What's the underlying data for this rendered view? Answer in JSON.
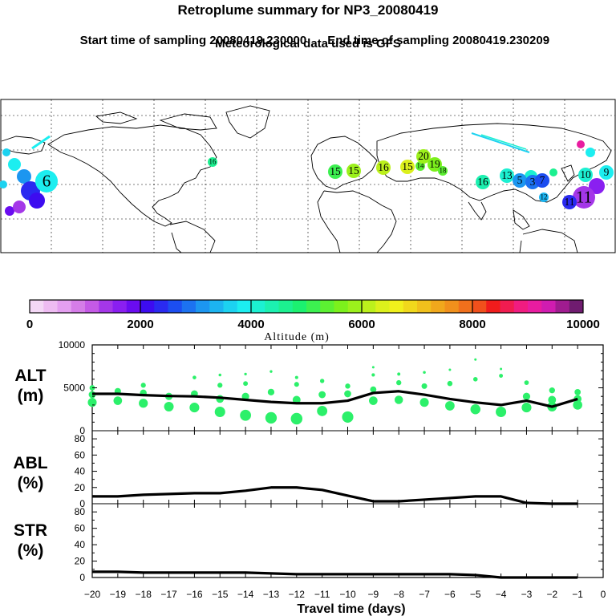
{
  "header": {
    "title": "Retroplume summary for NP3_20080419",
    "start_label": "Start time of sampling 20080419.230000",
    "end_label": "End time of sampling 20080419.230209",
    "met_label": "Meteorological data used is GFS"
  },
  "colorbar": {
    "ticks": [
      "0",
      "2000",
      "4000",
      "6000",
      "8000",
      "10000"
    ],
    "label": "Altitude (m)",
    "colors": [
      "#f4d8f6",
      "#eebcf2",
      "#e49ff0",
      "#d57de8",
      "#c45ae6",
      "#a437e8",
      "#8a1ff0",
      "#6a0cf0",
      "#3d0cf0",
      "#2a2af0",
      "#1c4ef0",
      "#1c72f0",
      "#1c96f0",
      "#1cb4f0",
      "#1cd2f0",
      "#1ceef0",
      "#1cf0d2",
      "#1cf0b0",
      "#1cf090",
      "#1cf070",
      "#3cf050",
      "#5cf032",
      "#7cf01c",
      "#9cf01c",
      "#bcf01c",
      "#dcf01c",
      "#f0f01c",
      "#f0d81c",
      "#f0c01c",
      "#f0a81c",
      "#f0901c",
      "#f0701c",
      "#f0501c",
      "#f01c1c",
      "#f01c50",
      "#f01c80",
      "#e81ca0",
      "#d01cb0",
      "#a01c90",
      "#701c70"
    ]
  },
  "map": {
    "markers": [
      {
        "label": "6",
        "color": "#1ceef0",
        "size": "big"
      },
      {
        "label": "16",
        "color": "#1cf0b0",
        "size": "mid"
      },
      {
        "label": "15",
        "color": "#3cf050",
        "size": "mid"
      },
      {
        "label": "15",
        "color": "#9cf01c",
        "size": "mid"
      },
      {
        "label": "16",
        "color": "#bcf01c",
        "size": "mid"
      },
      {
        "label": "15",
        "color": "#dcf01c",
        "size": "mid"
      },
      {
        "label": "14",
        "color": "#5cf032",
        "size": "small"
      },
      {
        "label": "20",
        "color": "#9cf01c",
        "size": "mid"
      },
      {
        "label": "19",
        "color": "#7cf01c",
        "size": "mid"
      },
      {
        "label": "18",
        "color": "#5cf032",
        "size": "small"
      },
      {
        "label": "16",
        "color": "#1cf090",
        "size": "small"
      },
      {
        "label": "13",
        "color": "#1cf0d2",
        "size": "mid"
      },
      {
        "label": "5",
        "color": "#1c96f0",
        "size": "mid"
      },
      {
        "label": "3",
        "color": "#1c72f0",
        "size": "mid"
      },
      {
        "label": "7",
        "color": "#1c4ef0",
        "size": "mid"
      },
      {
        "label": "12",
        "color": "#1cb4f0",
        "size": "small"
      },
      {
        "label": "10",
        "color": "#1cf0d2",
        "size": "mid"
      },
      {
        "label": "9",
        "color": "#1ceef0",
        "size": "mid"
      },
      {
        "label": "11",
        "color": "#a437e8",
        "size": "big"
      },
      {
        "label": "11",
        "color": "#2a2af0",
        "size": "mid"
      }
    ]
  },
  "panels": {
    "alt_label": "ALT",
    "alt_unit": "(m)",
    "abl_label": "ABL",
    "abl_unit": "(%)",
    "str_label": "STR",
    "str_unit": "(%)",
    "x_title": "Travel time (days)"
  },
  "chart_data": {
    "type": "line",
    "x": [
      -20,
      -19,
      -18,
      -17,
      -16,
      -15,
      -14,
      -13,
      -12,
      -11,
      -10,
      -9,
      -8,
      -7,
      -6,
      -5,
      -4,
      -3,
      -2,
      -1
    ],
    "x_tick_labels": [
      "−20",
      "−19",
      "−18",
      "−17",
      "−16",
      "−15",
      "−14",
      "−13",
      "−12",
      "−11",
      "−10",
      "−9",
      "−8",
      "−7",
      "−6",
      "−5",
      "−4",
      "−3",
      "−2",
      "−1",
      "0"
    ],
    "xlabel": "Travel time (days)",
    "xlim": [
      -20,
      0
    ],
    "series": [
      {
        "name": "ALT",
        "ylabel": "ALT (m)",
        "ylim": [
          0,
          10000
        ],
        "y_ticks": [
          "0",
          "5000",
          "10000"
        ],
        "values": [
          4300,
          4300,
          4150,
          4050,
          4000,
          3850,
          3600,
          3350,
          3200,
          3200,
          3500,
          4400,
          4600,
          4200,
          3700,
          3300,
          3000,
          3500,
          2800,
          3700
        ],
        "dots": [
          {
            "x": -20,
            "y": [
              3300,
              4200,
              5000
            ]
          },
          {
            "x": -19,
            "y": [
              3500,
              4600
            ]
          },
          {
            "x": -18,
            "y": [
              3200,
              4400,
              5300
            ]
          },
          {
            "x": -17,
            "y": [
              2800,
              4000
            ]
          },
          {
            "x": -16,
            "y": [
              2700,
              4300,
              6200
            ]
          },
          {
            "x": -15,
            "y": [
              2200,
              3700,
              5300,
              6500
            ]
          },
          {
            "x": -14,
            "y": [
              1800,
              4000,
              5500,
              6600
            ]
          },
          {
            "x": -13,
            "y": [
              1500,
              4500,
              6900
            ]
          },
          {
            "x": -12,
            "y": [
              1400,
              3600,
              5400,
              6200
            ]
          },
          {
            "x": -11,
            "y": [
              2300,
              4200,
              5800
            ]
          },
          {
            "x": -10,
            "y": [
              1600,
              4300,
              5200
            ]
          },
          {
            "x": -9,
            "y": [
              3500,
              4800,
              6500,
              7400
            ]
          },
          {
            "x": -8,
            "y": [
              3600,
              5600,
              6600
            ]
          },
          {
            "x": -7,
            "y": [
              3300,
              5200,
              6800
            ]
          },
          {
            "x": -6,
            "y": [
              2900,
              5500,
              7100
            ]
          },
          {
            "x": -5,
            "y": [
              2500,
              6000,
              8300
            ]
          },
          {
            "x": -4,
            "y": [
              2200,
              6400,
              7200
            ]
          },
          {
            "x": -3,
            "y": [
              2700,
              4000,
              5600
            ]
          },
          {
            "x": -2,
            "y": [
              2800,
              3600,
              4700
            ]
          },
          {
            "x": -1,
            "y": [
              3000,
              3700,
              4500
            ]
          }
        ]
      },
      {
        "name": "ABL",
        "ylabel": "ABL (%)",
        "ylim": [
          0,
          90
        ],
        "y_ticks": [
          "0",
          "20",
          "40",
          "60",
          "80"
        ],
        "values": [
          9,
          9,
          11,
          12,
          13,
          13,
          16,
          20,
          20,
          17,
          10,
          3,
          3,
          5,
          7,
          9,
          9,
          1,
          0,
          0
        ]
      },
      {
        "name": "STR",
        "ylabel": "STR (%)",
        "ylim": [
          0,
          90
        ],
        "y_ticks": [
          "0",
          "20",
          "40",
          "60",
          "80"
        ],
        "values": [
          7,
          7,
          6,
          6,
          6,
          6,
          6,
          5,
          4,
          4,
          4,
          4,
          4,
          4,
          4,
          3,
          0,
          0,
          0,
          0
        ]
      }
    ]
  }
}
